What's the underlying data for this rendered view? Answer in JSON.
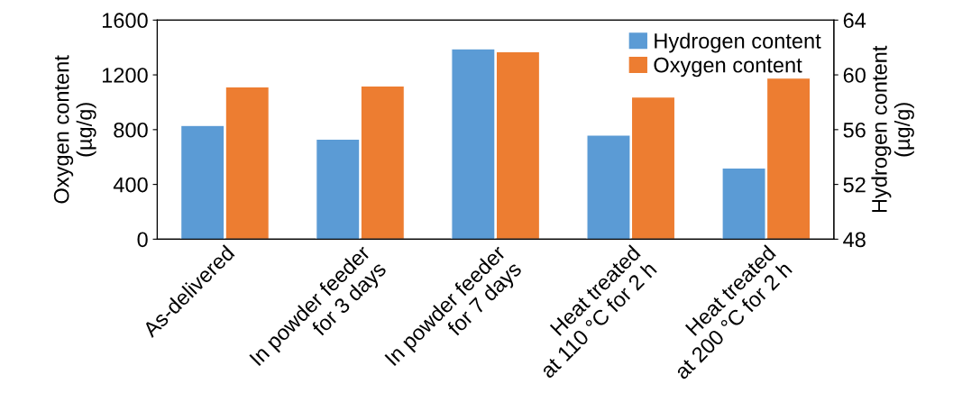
{
  "chart_data": {
    "type": "bar",
    "categories": [
      "As-delivered",
      "In powder feeder\nfor 3 days",
      "In powder feeder\nfor 7 days",
      "Heat treated\nat 110 °C for 2 h",
      "Heat treated\nat 200 °C for 2 h"
    ],
    "series": [
      {
        "name": "Hydrogen content",
        "color": "#5b9bd5",
        "axis": "y2",
        "values": [
          56.3,
          55.3,
          61.9,
          55.6,
          53.2
        ]
      },
      {
        "name": "Oxygen content",
        "color": "#ed7d31",
        "values": [
          1112,
          1118,
          1369,
          1038,
          1176
        ]
      }
    ],
    "ylabel": "Oxygen content\n(µg/g)",
    "y2label": "Hydrogen content\n(µg/g)",
    "ylim": [
      0,
      1600
    ],
    "yticks": [
      0,
      400,
      800,
      1200,
      1600
    ],
    "y2lim": [
      48,
      64
    ],
    "y2ticks": [
      48,
      52,
      56,
      60,
      64
    ],
    "legend": "top right",
    "grid": false
  }
}
